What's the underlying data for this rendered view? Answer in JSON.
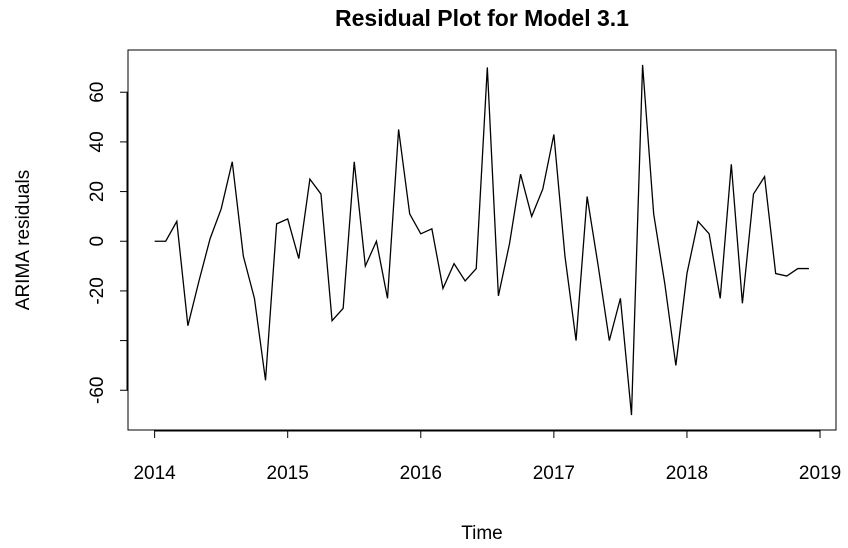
{
  "chart_data": {
    "type": "line",
    "title": "Residual Plot for Model 3.1",
    "x_label": "Time",
    "y_label": "ARIMA residuals",
    "x": [
      2014,
      2014.0833,
      2014.1667,
      2014.25,
      2014.3333,
      2014.4167,
      2014.5,
      2014.5833,
      2014.6667,
      2014.75,
      2014.8333,
      2014.9167,
      2015,
      2015.0833,
      2015.1667,
      2015.25,
      2015.3333,
      2015.4167,
      2015.5,
      2015.5833,
      2015.6667,
      2015.75,
      2015.8333,
      2015.9167,
      2016,
      2016.0833,
      2016.1667,
      2016.25,
      2016.3333,
      2016.4167,
      2016.5,
      2016.5833,
      2016.6667,
      2016.75,
      2016.8333,
      2016.9167,
      2017,
      2017.0833,
      2017.1667,
      2017.25,
      2017.3333,
      2017.4167,
      2017.5,
      2017.5833,
      2017.6667,
      2017.75,
      2017.8333,
      2017.9167,
      2018,
      2018.0833,
      2018.1667,
      2018.25,
      2018.3333,
      2018.4167,
      2018.5,
      2018.5833,
      2018.6667,
      2018.75,
      2018.8333,
      2018.9167
    ],
    "series": [
      {
        "name": "residuals",
        "color": "#000000",
        "values": [
          0,
          0,
          8,
          -34,
          -16,
          1,
          13,
          32,
          -6,
          -23,
          -56,
          7,
          9,
          -7,
          25,
          19,
          -32,
          -27,
          32,
          -10,
          0,
          -23,
          45,
          11,
          3,
          5,
          -19,
          -9,
          -16,
          -11,
          70,
          -22,
          -1,
          27,
          10,
          21,
          43,
          -6,
          -40,
          18,
          -10,
          -40,
          -23,
          -70,
          71,
          11,
          -17,
          -50,
          -13,
          8,
          3,
          -23,
          31,
          -25,
          19,
          26,
          -13,
          -14,
          -11,
          -11
        ]
      }
    ],
    "xlim": [
      2013.8,
      2019.12
    ],
    "ylim": [
      -76,
      77
    ],
    "xticks": [
      2014,
      2015,
      2016,
      2017,
      2018,
      2019
    ],
    "yticks": [
      -60,
      {
        "value": -40
      },
      -20,
      0,
      20,
      40,
      60
    ]
  }
}
